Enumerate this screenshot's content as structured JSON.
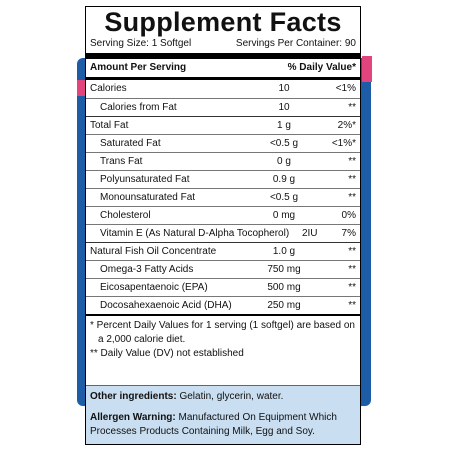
{
  "title": "Supplement Facts",
  "serving": {
    "size": "Serving Size: 1 Softgel",
    "per_container": "Servings Per Container: 90"
  },
  "header": {
    "amount": "Amount Per Serving",
    "daily_value": "% Daily Value*"
  },
  "rows": [
    {
      "name": "Calories",
      "amount": "10",
      "dv": "<1%"
    },
    {
      "name": "Calories from Fat",
      "amount": "10",
      "dv": "**"
    },
    {
      "name": "Total Fat",
      "amount": "1 g",
      "dv": "2%*"
    },
    {
      "name": "Saturated Fat",
      "amount": "<0.5 g",
      "dv": "<1%*"
    },
    {
      "name": "Trans Fat",
      "amount": "0 g",
      "dv": "**"
    },
    {
      "name": "Polyunsaturated Fat",
      "amount": "0.9 g",
      "dv": "**"
    },
    {
      "name": "Monounsaturated Fat",
      "amount": "<0.5 g",
      "dv": "**"
    },
    {
      "name": "Cholesterol",
      "amount": "0 mg",
      "dv": "0%"
    },
    {
      "name": "Vitamin E (As Natural D-Alpha Tocopherol)",
      "amount": "2IU",
      "dv": "7%"
    },
    {
      "name": "Natural Fish Oil Concentrate",
      "amount": "1.0 g",
      "dv": "**"
    },
    {
      "name": "Omega-3 Fatty Acids",
      "amount": "750 mg",
      "dv": "**"
    },
    {
      "name": "Eicosapentaenoic (EPA)",
      "amount": "500 mg",
      "dv": "**"
    },
    {
      "name": "Docosahexaenoic Acid (DHA)",
      "amount": "250 mg",
      "dv": "**"
    }
  ],
  "footnotes": [
    "* Percent Daily Values for 1 serving (1 softgel) are based on",
    "a 2,000 calorie diet.",
    "** Daily Value (DV) not established"
  ],
  "other_ingredients": {
    "label": "Other ingredients:",
    "text": "Gelatin, glycerin, water."
  },
  "allergen": {
    "label": "Allergen Warning:",
    "text": "Manufactured On Equipment Which Processes Products Containing Milk, Egg and Soy."
  }
}
